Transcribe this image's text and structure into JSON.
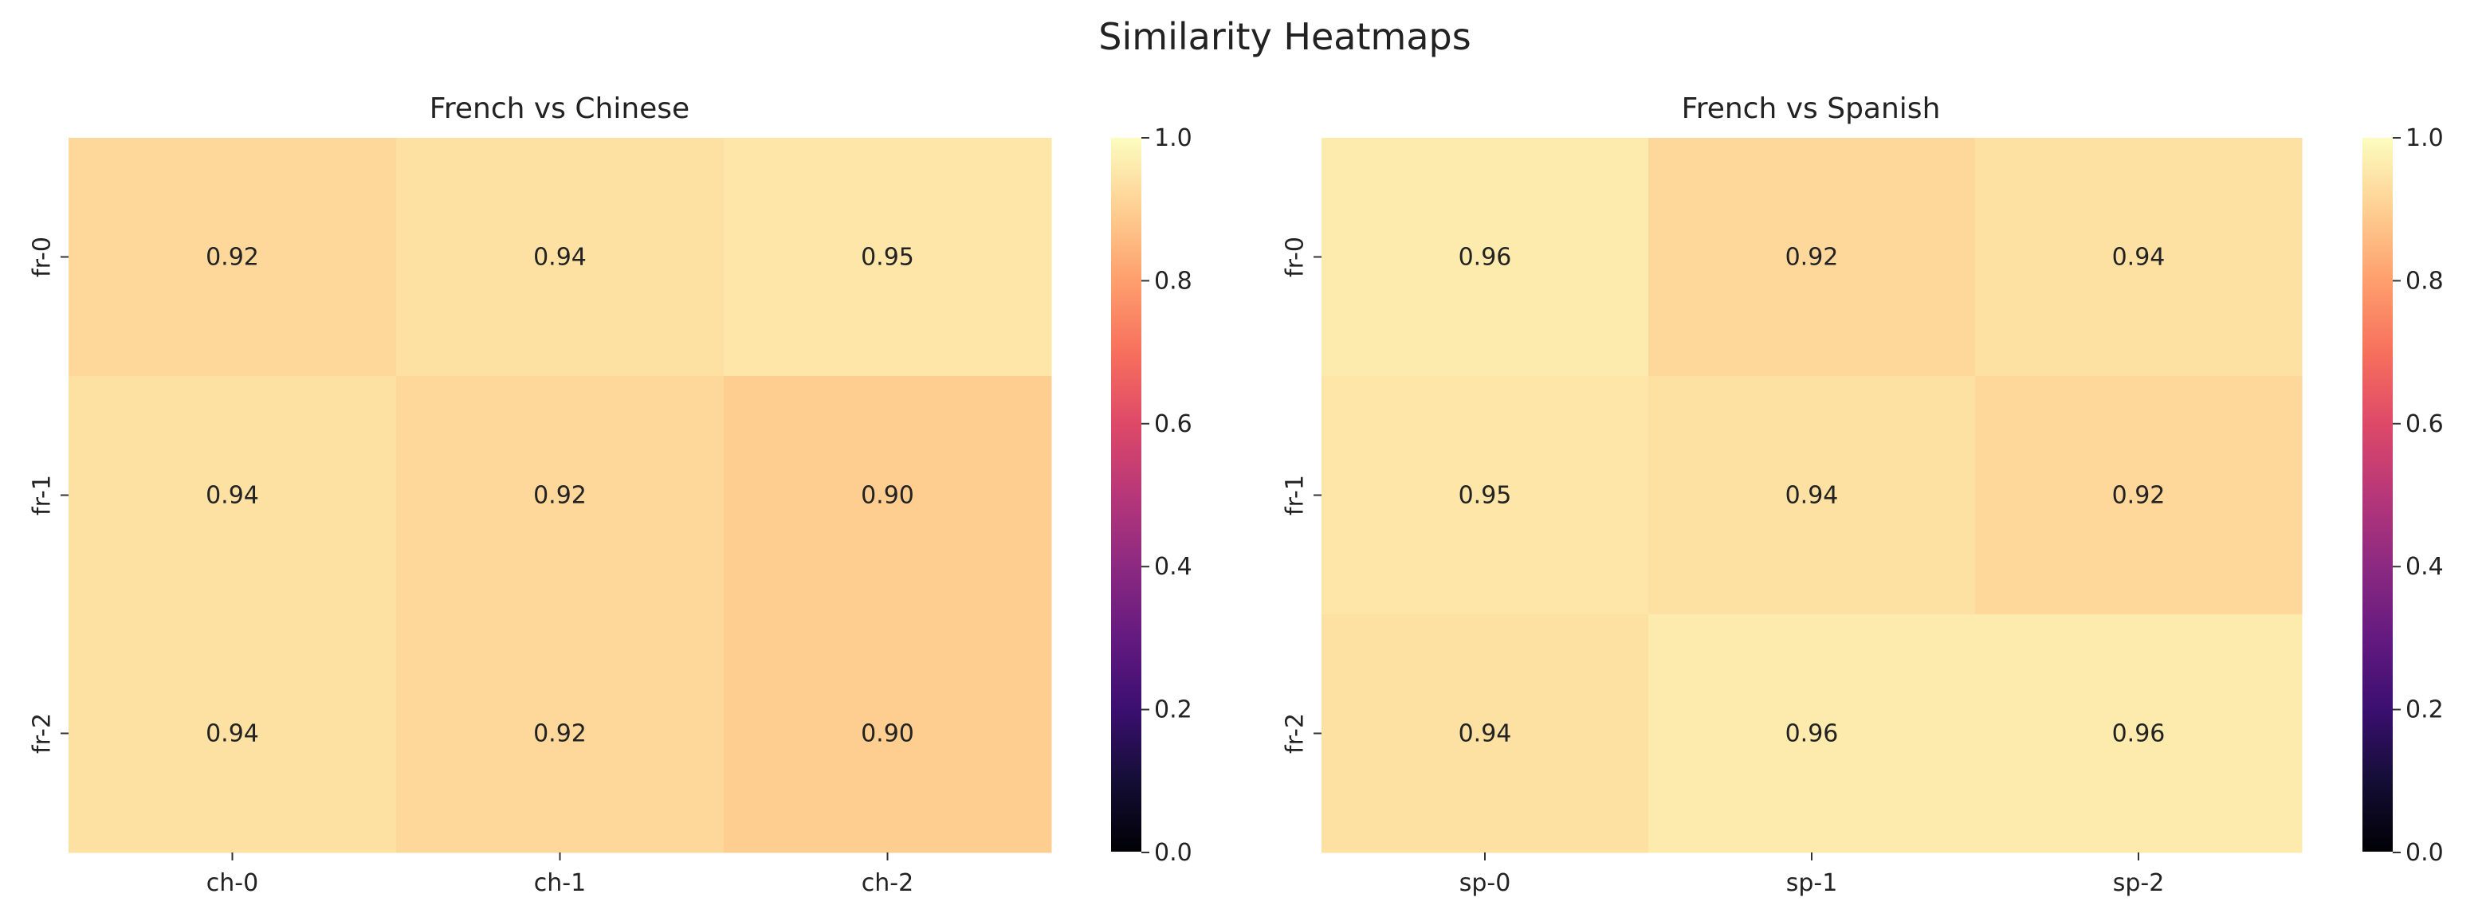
{
  "figure": {
    "title": "Similarity Heatmaps"
  },
  "colors": {
    "background": "#ffffff",
    "text": "#222222",
    "tick": "#333333",
    "colormap": "magma"
  },
  "chart_data": [
    {
      "type": "heatmap",
      "title": "French vs Chinese",
      "xlabel": "",
      "ylabel": "",
      "x_tick_labels": [
        "ch-0",
        "ch-1",
        "ch-2"
      ],
      "y_tick_labels": [
        "fr-0",
        "fr-1",
        "fr-2"
      ],
      "values": [
        [
          0.92,
          0.94,
          0.95
        ],
        [
          0.94,
          0.92,
          0.9
        ],
        [
          0.94,
          0.92,
          0.9
        ]
      ],
      "annotations": [
        [
          "0.92",
          "0.94",
          "0.95"
        ],
        [
          "0.94",
          "0.92",
          "0.90"
        ],
        [
          "0.94",
          "0.92",
          "0.90"
        ]
      ],
      "vmin": 0.0,
      "vmax": 1.0,
      "colorbar_ticks": [
        0.0,
        0.2,
        0.4,
        0.6,
        0.8,
        1.0
      ],
      "colorbar_tick_labels": [
        "0.0",
        "0.2",
        "0.4",
        "0.6",
        "0.8",
        "1.0"
      ]
    },
    {
      "type": "heatmap",
      "title": "French vs Spanish",
      "xlabel": "",
      "ylabel": "",
      "x_tick_labels": [
        "sp-0",
        "sp-1",
        "sp-2"
      ],
      "y_tick_labels": [
        "fr-0",
        "fr-1",
        "fr-2"
      ],
      "values": [
        [
          0.96,
          0.92,
          0.94
        ],
        [
          0.95,
          0.94,
          0.92
        ],
        [
          0.94,
          0.96,
          0.96
        ]
      ],
      "annotations": [
        [
          "0.96",
          "0.92",
          "0.94"
        ],
        [
          "0.95",
          "0.94",
          "0.92"
        ],
        [
          "0.94",
          "0.96",
          "0.96"
        ]
      ],
      "vmin": 0.0,
      "vmax": 1.0,
      "colorbar_ticks": [
        0.0,
        0.2,
        0.4,
        0.6,
        0.8,
        1.0
      ],
      "colorbar_tick_labels": [
        "0.0",
        "0.2",
        "0.4",
        "0.6",
        "0.8",
        "1.0"
      ]
    }
  ]
}
